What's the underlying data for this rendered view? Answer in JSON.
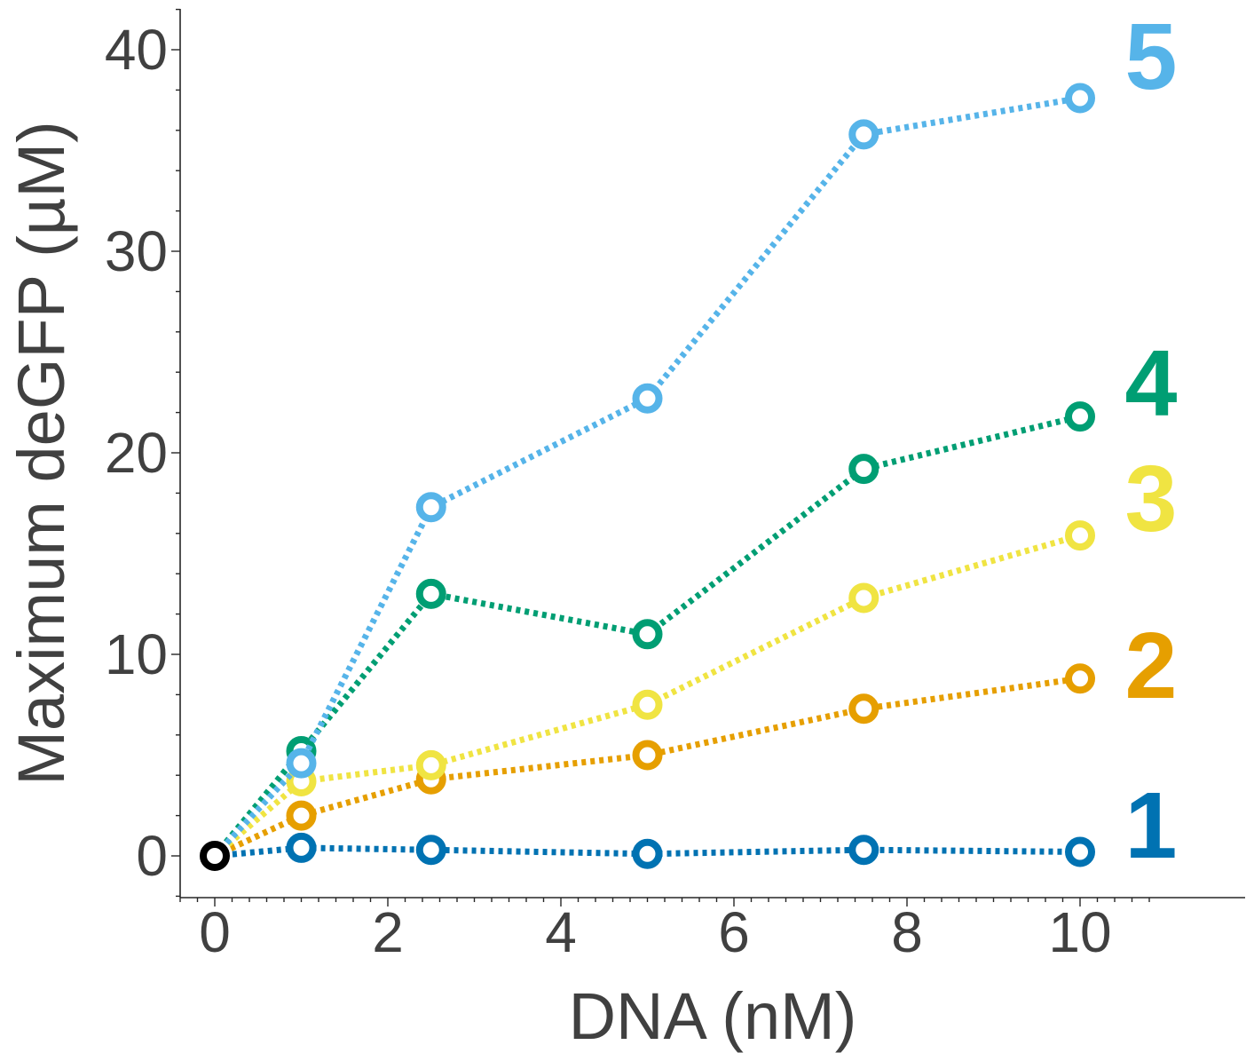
{
  "chart_data": {
    "type": "line",
    "xlabel": "DNA (nM)",
    "ylabel": "Maximum deGFP (µM)",
    "xlim": [
      -0.4,
      11.8
    ],
    "ylim": [
      -2.1,
      42.1
    ],
    "xticks": [
      0,
      2,
      4,
      6,
      8,
      10
    ],
    "yticks": [
      0,
      10,
      20,
      30,
      40
    ],
    "grid": false,
    "line_style": "dotted",
    "marker": "open-circle",
    "series": [
      {
        "name": "1",
        "color": "#0072B2",
        "x": [
          0,
          1,
          2.5,
          5,
          7.5,
          10
        ],
        "y": [
          0,
          0.4,
          0.3,
          0.1,
          0.3,
          0.2
        ]
      },
      {
        "name": "2",
        "color": "#E69F00",
        "x": [
          0,
          1,
          2.5,
          5,
          7.5,
          10
        ],
        "y": [
          0,
          2.0,
          3.8,
          5.0,
          7.3,
          8.8
        ]
      },
      {
        "name": "3",
        "color": "#F0E442",
        "x": [
          0,
          1,
          2.5,
          5,
          7.5,
          10
        ],
        "y": [
          0,
          3.7,
          4.5,
          7.5,
          12.8,
          15.9
        ]
      },
      {
        "name": "4",
        "color": "#009E73",
        "x": [
          0,
          1,
          2.5,
          5,
          7.5,
          10
        ],
        "y": [
          0,
          5.2,
          13.0,
          11.0,
          19.2,
          21.8
        ]
      },
      {
        "name": "5",
        "color": "#56B4E9",
        "x": [
          0,
          1,
          2.5,
          5,
          7.5,
          10
        ],
        "y": [
          0,
          4.6,
          17.3,
          22.7,
          35.8,
          37.6
        ]
      }
    ],
    "origin_point": {
      "x": 0,
      "y": 0,
      "color": "#000000"
    }
  }
}
